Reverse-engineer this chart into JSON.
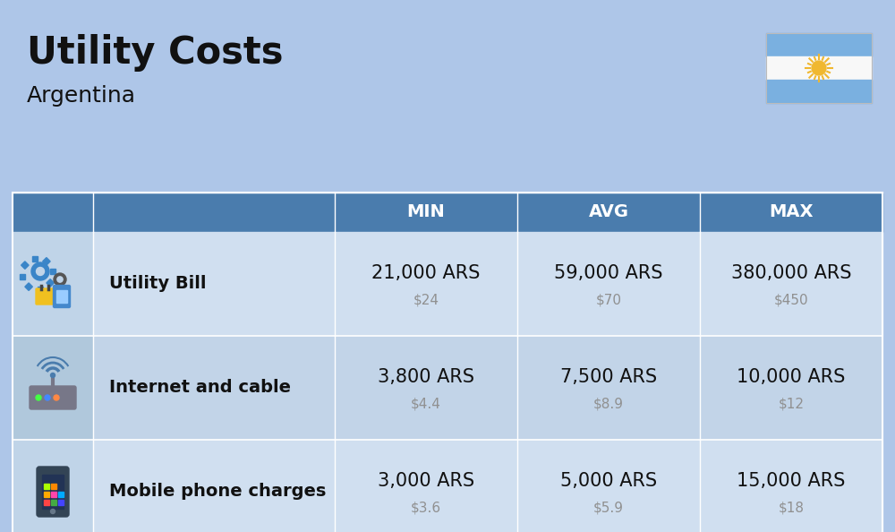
{
  "title": "Utility Costs",
  "subtitle": "Argentina",
  "background_color": "#aec6e8",
  "header_color": "#4a7cad",
  "header_text_color": "#ffffff",
  "row_color_even": "#d0dff0",
  "row_color_odd": "#c2d4e8",
  "icon_bg_even": "#c0d4e8",
  "icon_bg_odd": "#b0c8dc",
  "text_color": "#111111",
  "sub_value_color": "#909090",
  "border_color": "#ffffff",
  "col_headers": [
    "MIN",
    "AVG",
    "MAX"
  ],
  "rows": [
    {
      "label": "Utility Bill",
      "min_ars": "21,000 ARS",
      "min_usd": "$24",
      "avg_ars": "59,000 ARS",
      "avg_usd": "$70",
      "max_ars": "380,000 ARS",
      "max_usd": "$450",
      "icon": "utility"
    },
    {
      "label": "Internet and cable",
      "min_ars": "3,800 ARS",
      "min_usd": "$4.4",
      "avg_ars": "7,500 ARS",
      "avg_usd": "$8.9",
      "max_ars": "10,000 ARS",
      "max_usd": "$12",
      "icon": "internet"
    },
    {
      "label": "Mobile phone charges",
      "min_ars": "3,000 ARS",
      "min_usd": "$3.6",
      "avg_ars": "5,000 ARS",
      "avg_usd": "$5.9",
      "max_ars": "15,000 ARS",
      "max_usd": "$18",
      "icon": "mobile"
    }
  ],
  "title_fontsize": 30,
  "subtitle_fontsize": 18,
  "header_fontsize": 14,
  "label_fontsize": 14,
  "value_fontsize": 15,
  "subvalue_fontsize": 11,
  "flag_blue": "#7ab0e0",
  "flag_white": "#f8f8f8",
  "flag_sun": "#f0b830"
}
